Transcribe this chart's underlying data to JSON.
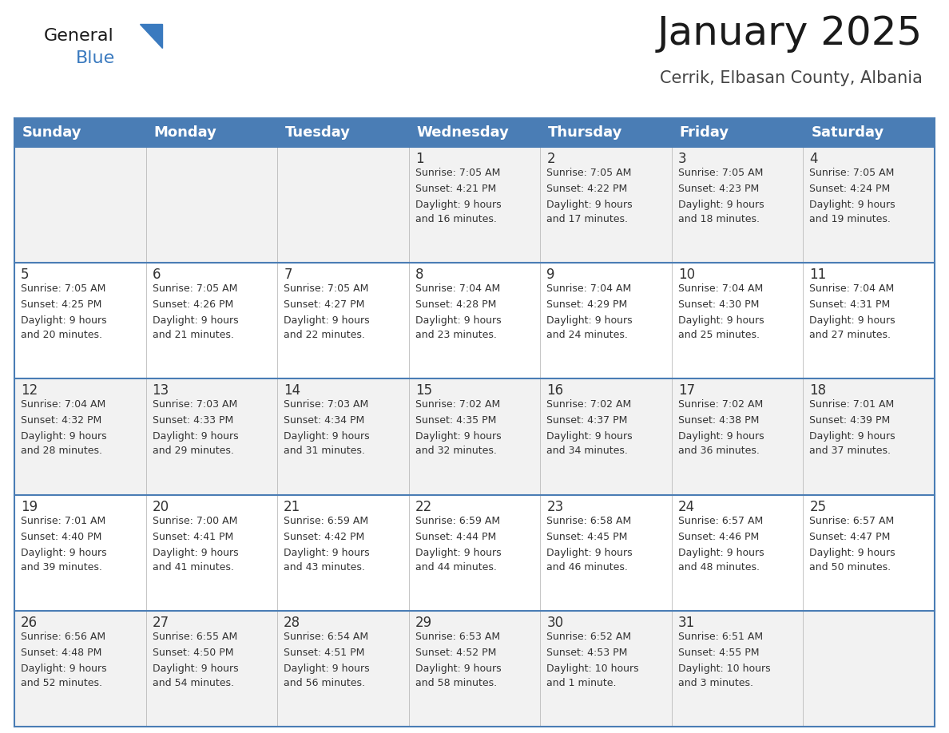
{
  "title": "January 2025",
  "subtitle": "Cerrik, Elbasan County, Albania",
  "header_bg_color": "#4a7db5",
  "header_text_color": "#ffffff",
  "row_bg_colors": [
    "#f2f2f2",
    "#ffffff",
    "#f2f2f2",
    "#ffffff",
    "#f2f2f2"
  ],
  "days_of_week": [
    "Sunday",
    "Monday",
    "Tuesday",
    "Wednesday",
    "Thursday",
    "Friday",
    "Saturday"
  ],
  "title_fontsize": 36,
  "subtitle_fontsize": 15,
  "header_fontsize": 13,
  "day_num_fontsize": 12,
  "info_fontsize": 9,
  "calendar_data": [
    [
      {
        "day": null,
        "sunrise": null,
        "sunset": null,
        "daylight": null
      },
      {
        "day": null,
        "sunrise": null,
        "sunset": null,
        "daylight": null
      },
      {
        "day": null,
        "sunrise": null,
        "sunset": null,
        "daylight": null
      },
      {
        "day": 1,
        "sunrise": "7:05 AM",
        "sunset": "4:21 PM",
        "daylight": "9 hours\nand 16 minutes."
      },
      {
        "day": 2,
        "sunrise": "7:05 AM",
        "sunset": "4:22 PM",
        "daylight": "9 hours\nand 17 minutes."
      },
      {
        "day": 3,
        "sunrise": "7:05 AM",
        "sunset": "4:23 PM",
        "daylight": "9 hours\nand 18 minutes."
      },
      {
        "day": 4,
        "sunrise": "7:05 AM",
        "sunset": "4:24 PM",
        "daylight": "9 hours\nand 19 minutes."
      }
    ],
    [
      {
        "day": 5,
        "sunrise": "7:05 AM",
        "sunset": "4:25 PM",
        "daylight": "9 hours\nand 20 minutes."
      },
      {
        "day": 6,
        "sunrise": "7:05 AM",
        "sunset": "4:26 PM",
        "daylight": "9 hours\nand 21 minutes."
      },
      {
        "day": 7,
        "sunrise": "7:05 AM",
        "sunset": "4:27 PM",
        "daylight": "9 hours\nand 22 minutes."
      },
      {
        "day": 8,
        "sunrise": "7:04 AM",
        "sunset": "4:28 PM",
        "daylight": "9 hours\nand 23 minutes."
      },
      {
        "day": 9,
        "sunrise": "7:04 AM",
        "sunset": "4:29 PM",
        "daylight": "9 hours\nand 24 minutes."
      },
      {
        "day": 10,
        "sunrise": "7:04 AM",
        "sunset": "4:30 PM",
        "daylight": "9 hours\nand 25 minutes."
      },
      {
        "day": 11,
        "sunrise": "7:04 AM",
        "sunset": "4:31 PM",
        "daylight": "9 hours\nand 27 minutes."
      }
    ],
    [
      {
        "day": 12,
        "sunrise": "7:04 AM",
        "sunset": "4:32 PM",
        "daylight": "9 hours\nand 28 minutes."
      },
      {
        "day": 13,
        "sunrise": "7:03 AM",
        "sunset": "4:33 PM",
        "daylight": "9 hours\nand 29 minutes."
      },
      {
        "day": 14,
        "sunrise": "7:03 AM",
        "sunset": "4:34 PM",
        "daylight": "9 hours\nand 31 minutes."
      },
      {
        "day": 15,
        "sunrise": "7:02 AM",
        "sunset": "4:35 PM",
        "daylight": "9 hours\nand 32 minutes."
      },
      {
        "day": 16,
        "sunrise": "7:02 AM",
        "sunset": "4:37 PM",
        "daylight": "9 hours\nand 34 minutes."
      },
      {
        "day": 17,
        "sunrise": "7:02 AM",
        "sunset": "4:38 PM",
        "daylight": "9 hours\nand 36 minutes."
      },
      {
        "day": 18,
        "sunrise": "7:01 AM",
        "sunset": "4:39 PM",
        "daylight": "9 hours\nand 37 minutes."
      }
    ],
    [
      {
        "day": 19,
        "sunrise": "7:01 AM",
        "sunset": "4:40 PM",
        "daylight": "9 hours\nand 39 minutes."
      },
      {
        "day": 20,
        "sunrise": "7:00 AM",
        "sunset": "4:41 PM",
        "daylight": "9 hours\nand 41 minutes."
      },
      {
        "day": 21,
        "sunrise": "6:59 AM",
        "sunset": "4:42 PM",
        "daylight": "9 hours\nand 43 minutes."
      },
      {
        "day": 22,
        "sunrise": "6:59 AM",
        "sunset": "4:44 PM",
        "daylight": "9 hours\nand 44 minutes."
      },
      {
        "day": 23,
        "sunrise": "6:58 AM",
        "sunset": "4:45 PM",
        "daylight": "9 hours\nand 46 minutes."
      },
      {
        "day": 24,
        "sunrise": "6:57 AM",
        "sunset": "4:46 PM",
        "daylight": "9 hours\nand 48 minutes."
      },
      {
        "day": 25,
        "sunrise": "6:57 AM",
        "sunset": "4:47 PM",
        "daylight": "9 hours\nand 50 minutes."
      }
    ],
    [
      {
        "day": 26,
        "sunrise": "6:56 AM",
        "sunset": "4:48 PM",
        "daylight": "9 hours\nand 52 minutes."
      },
      {
        "day": 27,
        "sunrise": "6:55 AM",
        "sunset": "4:50 PM",
        "daylight": "9 hours\nand 54 minutes."
      },
      {
        "day": 28,
        "sunrise": "6:54 AM",
        "sunset": "4:51 PM",
        "daylight": "9 hours\nand 56 minutes."
      },
      {
        "day": 29,
        "sunrise": "6:53 AM",
        "sunset": "4:52 PM",
        "daylight": "9 hours\nand 58 minutes."
      },
      {
        "day": 30,
        "sunrise": "6:52 AM",
        "sunset": "4:53 PM",
        "daylight": "10 hours\nand 1 minute."
      },
      {
        "day": 31,
        "sunrise": "6:51 AM",
        "sunset": "4:55 PM",
        "daylight": "10 hours\nand 3 minutes."
      },
      {
        "day": null,
        "sunrise": null,
        "sunset": null,
        "daylight": null
      }
    ]
  ],
  "border_color": "#4a7db5",
  "text_color": "#333333",
  "logo_general_color": "#1a1a1a",
  "logo_blue_color": "#3a7abf",
  "logo_triangle_color": "#3a7abf"
}
